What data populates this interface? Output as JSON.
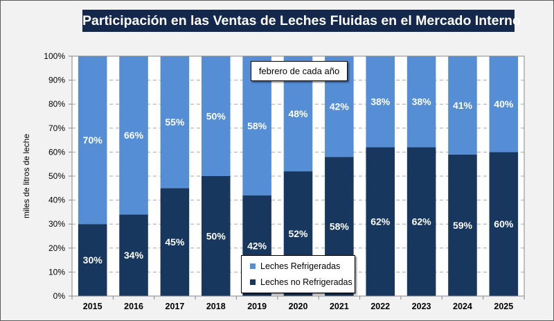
{
  "chart_data": {
    "type": "bar",
    "stacked": true,
    "title": "Participación en las Ventas de Leches Fluidas en el Mercado Interno",
    "annotation": "febrero de cada año",
    "xlabel": "",
    "ylabel": "miles de litros de leche",
    "ylim": [
      0,
      100
    ],
    "yticks": [
      "0%",
      "10%",
      "20%",
      "30%",
      "40%",
      "50%",
      "60%",
      "70%",
      "80%",
      "90%",
      "100%"
    ],
    "grid": "horizontal dashed",
    "legend_position": "bottom-center",
    "categories": [
      "2015",
      "2016",
      "2017",
      "2018",
      "2019",
      "2020",
      "2021",
      "2022",
      "2023",
      "2024",
      "2025"
    ],
    "series": [
      {
        "name": "Leches no Refrigeradas",
        "color": "#17375e",
        "values": [
          30,
          34,
          45,
          50,
          42,
          52,
          58,
          62,
          62,
          59,
          60
        ],
        "labels": [
          "30%",
          "34%",
          "45%",
          "50%",
          "42%",
          "52%",
          "58%",
          "62%",
          "62%",
          "59%",
          "60%"
        ]
      },
      {
        "name": "Leches Refrigeradas",
        "color": "#558ed5",
        "values": [
          70,
          66,
          55,
          50,
          58,
          48,
          42,
          38,
          38,
          41,
          40
        ],
        "labels": [
          "70%",
          "66%",
          "55%",
          "50%",
          "58%",
          "48%",
          "42%",
          "38%",
          "38%",
          "41%",
          "40%"
        ]
      }
    ],
    "legend": [
      "Leches Refrigeradas",
      "Leches no Refrigeradas"
    ]
  }
}
